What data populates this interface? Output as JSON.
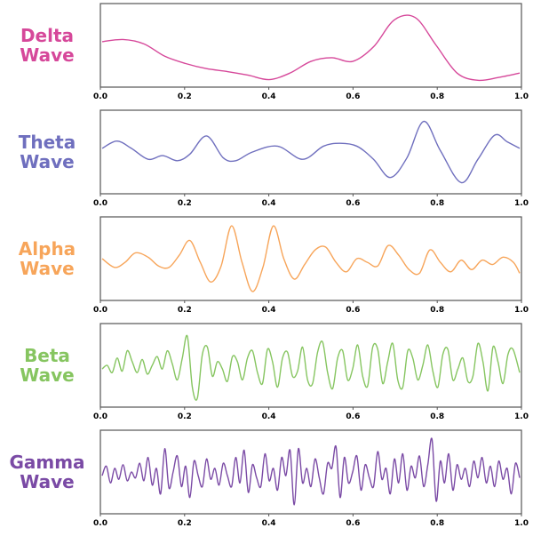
{
  "chart_data": [
    {
      "type": "line",
      "label_line1": "Delta",
      "label_line2": "Wave",
      "color": "#d6489a",
      "xlim": [
        0,
        1
      ],
      "x_ticks": [
        "0.0",
        "0.2",
        "0.4",
        "0.6",
        "0.8",
        "1.0"
      ],
      "series": [
        {
          "x": [
            0.0,
            0.05,
            0.1,
            0.15,
            0.2,
            0.25,
            0.3,
            0.35,
            0.4,
            0.45,
            0.5,
            0.55,
            0.6,
            0.65,
            0.7,
            0.75,
            0.8,
            0.85,
            0.9,
            0.95,
            1.0
          ],
          "y": [
            0.55,
            0.58,
            0.52,
            0.35,
            0.25,
            0.18,
            0.14,
            0.09,
            0.03,
            0.12,
            0.28,
            0.33,
            0.28,
            0.48,
            0.85,
            0.88,
            0.5,
            0.12,
            0.02,
            0.06,
            0.12
          ]
        }
      ]
    },
    {
      "type": "line",
      "label_line1": "Theta",
      "label_line2": "Wave",
      "color": "#6f6fbe",
      "xlim": [
        0,
        1
      ],
      "x_ticks": [
        "0.0",
        "0.2",
        "0.4",
        "0.6",
        "0.8",
        "1.0"
      ],
      "series": [
        {
          "x": [
            0.0,
            0.035,
            0.07,
            0.11,
            0.145,
            0.18,
            0.21,
            0.25,
            0.29,
            0.32,
            0.36,
            0.42,
            0.48,
            0.53,
            0.57,
            0.61,
            0.65,
            0.69,
            0.73,
            0.77,
            0.81,
            0.86,
            0.9,
            0.94,
            0.97,
            1.0
          ],
          "y": [
            0.55,
            0.65,
            0.55,
            0.4,
            0.45,
            0.38,
            0.47,
            0.72,
            0.42,
            0.38,
            0.5,
            0.58,
            0.4,
            0.58,
            0.62,
            0.58,
            0.4,
            0.15,
            0.42,
            0.92,
            0.52,
            0.08,
            0.4,
            0.73,
            0.64,
            0.55
          ]
        }
      ]
    },
    {
      "type": "line",
      "label_line1": "Alpha",
      "label_line2": "Wave",
      "color": "#f7a55a",
      "xlim": [
        0,
        1
      ],
      "x_ticks": [
        "0.0",
        "0.2",
        "0.4",
        "0.6",
        "0.8",
        "1.0"
      ],
      "series": [
        {
          "x": [
            0.0,
            0.03,
            0.055,
            0.08,
            0.11,
            0.135,
            0.16,
            0.185,
            0.21,
            0.235,
            0.26,
            0.285,
            0.31,
            0.335,
            0.36,
            0.385,
            0.41,
            0.435,
            0.46,
            0.485,
            0.51,
            0.535,
            0.56,
            0.585,
            0.61,
            0.635,
            0.66,
            0.685,
            0.71,
            0.735,
            0.76,
            0.785,
            0.81,
            0.835,
            0.86,
            0.885,
            0.91,
            0.935,
            0.96,
            0.985,
            1.0
          ],
          "y": [
            0.5,
            0.38,
            0.45,
            0.58,
            0.52,
            0.4,
            0.38,
            0.55,
            0.75,
            0.45,
            0.18,
            0.4,
            0.95,
            0.45,
            0.05,
            0.38,
            0.95,
            0.5,
            0.22,
            0.42,
            0.62,
            0.66,
            0.45,
            0.32,
            0.5,
            0.45,
            0.4,
            0.68,
            0.55,
            0.35,
            0.3,
            0.62,
            0.45,
            0.32,
            0.48,
            0.35,
            0.48,
            0.42,
            0.52,
            0.45,
            0.3
          ]
        }
      ]
    },
    {
      "type": "line",
      "label_line1": "Beta",
      "label_line2": "Wave",
      "color": "#86c560",
      "xlim": [
        0,
        1
      ],
      "x_ticks": [
        "0.0",
        "0.2",
        "0.4",
        "0.6",
        "0.8",
        "1.0"
      ],
      "series": [
        {
          "x": [
            0.0,
            0.012,
            0.024,
            0.036,
            0.048,
            0.06,
            0.072,
            0.084,
            0.096,
            0.108,
            0.12,
            0.132,
            0.144,
            0.156,
            0.168,
            0.18,
            0.192,
            0.204,
            0.216,
            0.228,
            0.24,
            0.252,
            0.264,
            0.276,
            0.288,
            0.3,
            0.312,
            0.324,
            0.336,
            0.348,
            0.36,
            0.372,
            0.384,
            0.396,
            0.408,
            0.42,
            0.432,
            0.444,
            0.456,
            0.468,
            0.48,
            0.492,
            0.504,
            0.516,
            0.528,
            0.54,
            0.552,
            0.564,
            0.576,
            0.588,
            0.6,
            0.612,
            0.624,
            0.636,
            0.648,
            0.66,
            0.672,
            0.684,
            0.696,
            0.708,
            0.72,
            0.732,
            0.744,
            0.756,
            0.768,
            0.78,
            0.792,
            0.804,
            0.816,
            0.828,
            0.84,
            0.852,
            0.864,
            0.876,
            0.888,
            0.9,
            0.912,
            0.924,
            0.936,
            0.948,
            0.96,
            0.972,
            0.984,
            1.0
          ],
          "y": [
            0.45,
            0.5,
            0.4,
            0.6,
            0.42,
            0.7,
            0.55,
            0.4,
            0.58,
            0.38,
            0.5,
            0.62,
            0.45,
            0.7,
            0.52,
            0.3,
            0.6,
            0.9,
            0.2,
            0.05,
            0.65,
            0.75,
            0.35,
            0.55,
            0.45,
            0.28,
            0.62,
            0.55,
            0.3,
            0.6,
            0.7,
            0.4,
            0.25,
            0.72,
            0.55,
            0.2,
            0.6,
            0.68,
            0.35,
            0.42,
            0.75,
            0.3,
            0.25,
            0.68,
            0.82,
            0.4,
            0.18,
            0.6,
            0.7,
            0.3,
            0.45,
            0.78,
            0.35,
            0.22,
            0.75,
            0.72,
            0.25,
            0.55,
            0.8,
            0.3,
            0.2,
            0.7,
            0.6,
            0.3,
            0.5,
            0.78,
            0.42,
            0.2,
            0.65,
            0.72,
            0.3,
            0.45,
            0.6,
            0.28,
            0.35,
            0.8,
            0.55,
            0.15,
            0.75,
            0.55,
            0.25,
            0.65,
            0.72,
            0.4
          ]
        }
      ]
    },
    {
      "type": "line",
      "label_line1": "Gamma",
      "label_line2": "Wave",
      "color": "#7a4aa5",
      "xlim": [
        0,
        1
      ],
      "x_ticks": [
        "0.0",
        "0.2",
        "0.4",
        "0.6",
        "0.8",
        "1.0"
      ],
      "series": [
        {
          "x": [
            0.0,
            0.01,
            0.02,
            0.03,
            0.04,
            0.05,
            0.06,
            0.07,
            0.08,
            0.09,
            0.1,
            0.11,
            0.12,
            0.13,
            0.14,
            0.15,
            0.16,
            0.17,
            0.18,
            0.19,
            0.2,
            0.21,
            0.22,
            0.23,
            0.24,
            0.25,
            0.26,
            0.27,
            0.28,
            0.29,
            0.3,
            0.31,
            0.32,
            0.33,
            0.34,
            0.35,
            0.36,
            0.37,
            0.38,
            0.39,
            0.4,
            0.41,
            0.42,
            0.43,
            0.44,
            0.45,
            0.46,
            0.47,
            0.48,
            0.49,
            0.5,
            0.51,
            0.52,
            0.53,
            0.54,
            0.55,
            0.56,
            0.57,
            0.58,
            0.59,
            0.6,
            0.61,
            0.62,
            0.63,
            0.64,
            0.65,
            0.66,
            0.67,
            0.68,
            0.69,
            0.7,
            0.71,
            0.72,
            0.73,
            0.74,
            0.75,
            0.76,
            0.77,
            0.78,
            0.79,
            0.8,
            0.81,
            0.82,
            0.83,
            0.84,
            0.85,
            0.86,
            0.87,
            0.88,
            0.89,
            0.9,
            0.91,
            0.92,
            0.93,
            0.94,
            0.95,
            0.96,
            0.97,
            0.98,
            0.99,
            1.0
          ],
          "y": [
            0.45,
            0.58,
            0.35,
            0.55,
            0.4,
            0.6,
            0.38,
            0.5,
            0.42,
            0.62,
            0.38,
            0.7,
            0.32,
            0.55,
            0.2,
            0.82,
            0.28,
            0.5,
            0.72,
            0.3,
            0.58,
            0.15,
            0.65,
            0.45,
            0.3,
            0.68,
            0.4,
            0.55,
            0.32,
            0.62,
            0.45,
            0.3,
            0.7,
            0.35,
            0.8,
            0.22,
            0.6,
            0.42,
            0.3,
            0.75,
            0.38,
            0.55,
            0.25,
            0.7,
            0.45,
            0.8,
            0.05,
            0.82,
            0.35,
            0.55,
            0.3,
            0.68,
            0.42,
            0.2,
            0.62,
            0.55,
            0.85,
            0.15,
            0.7,
            0.35,
            0.5,
            0.72,
            0.25,
            0.6,
            0.42,
            0.3,
            0.78,
            0.4,
            0.55,
            0.2,
            0.68,
            0.35,
            0.75,
            0.25,
            0.58,
            0.42,
            0.72,
            0.3,
            0.6,
            0.95,
            0.1,
            0.65,
            0.35,
            0.75,
            0.25,
            0.6,
            0.4,
            0.55,
            0.3,
            0.65,
            0.42,
            0.7,
            0.35,
            0.58,
            0.3,
            0.65,
            0.4,
            0.55,
            0.2,
            0.62,
            0.42
          ]
        }
      ]
    }
  ]
}
